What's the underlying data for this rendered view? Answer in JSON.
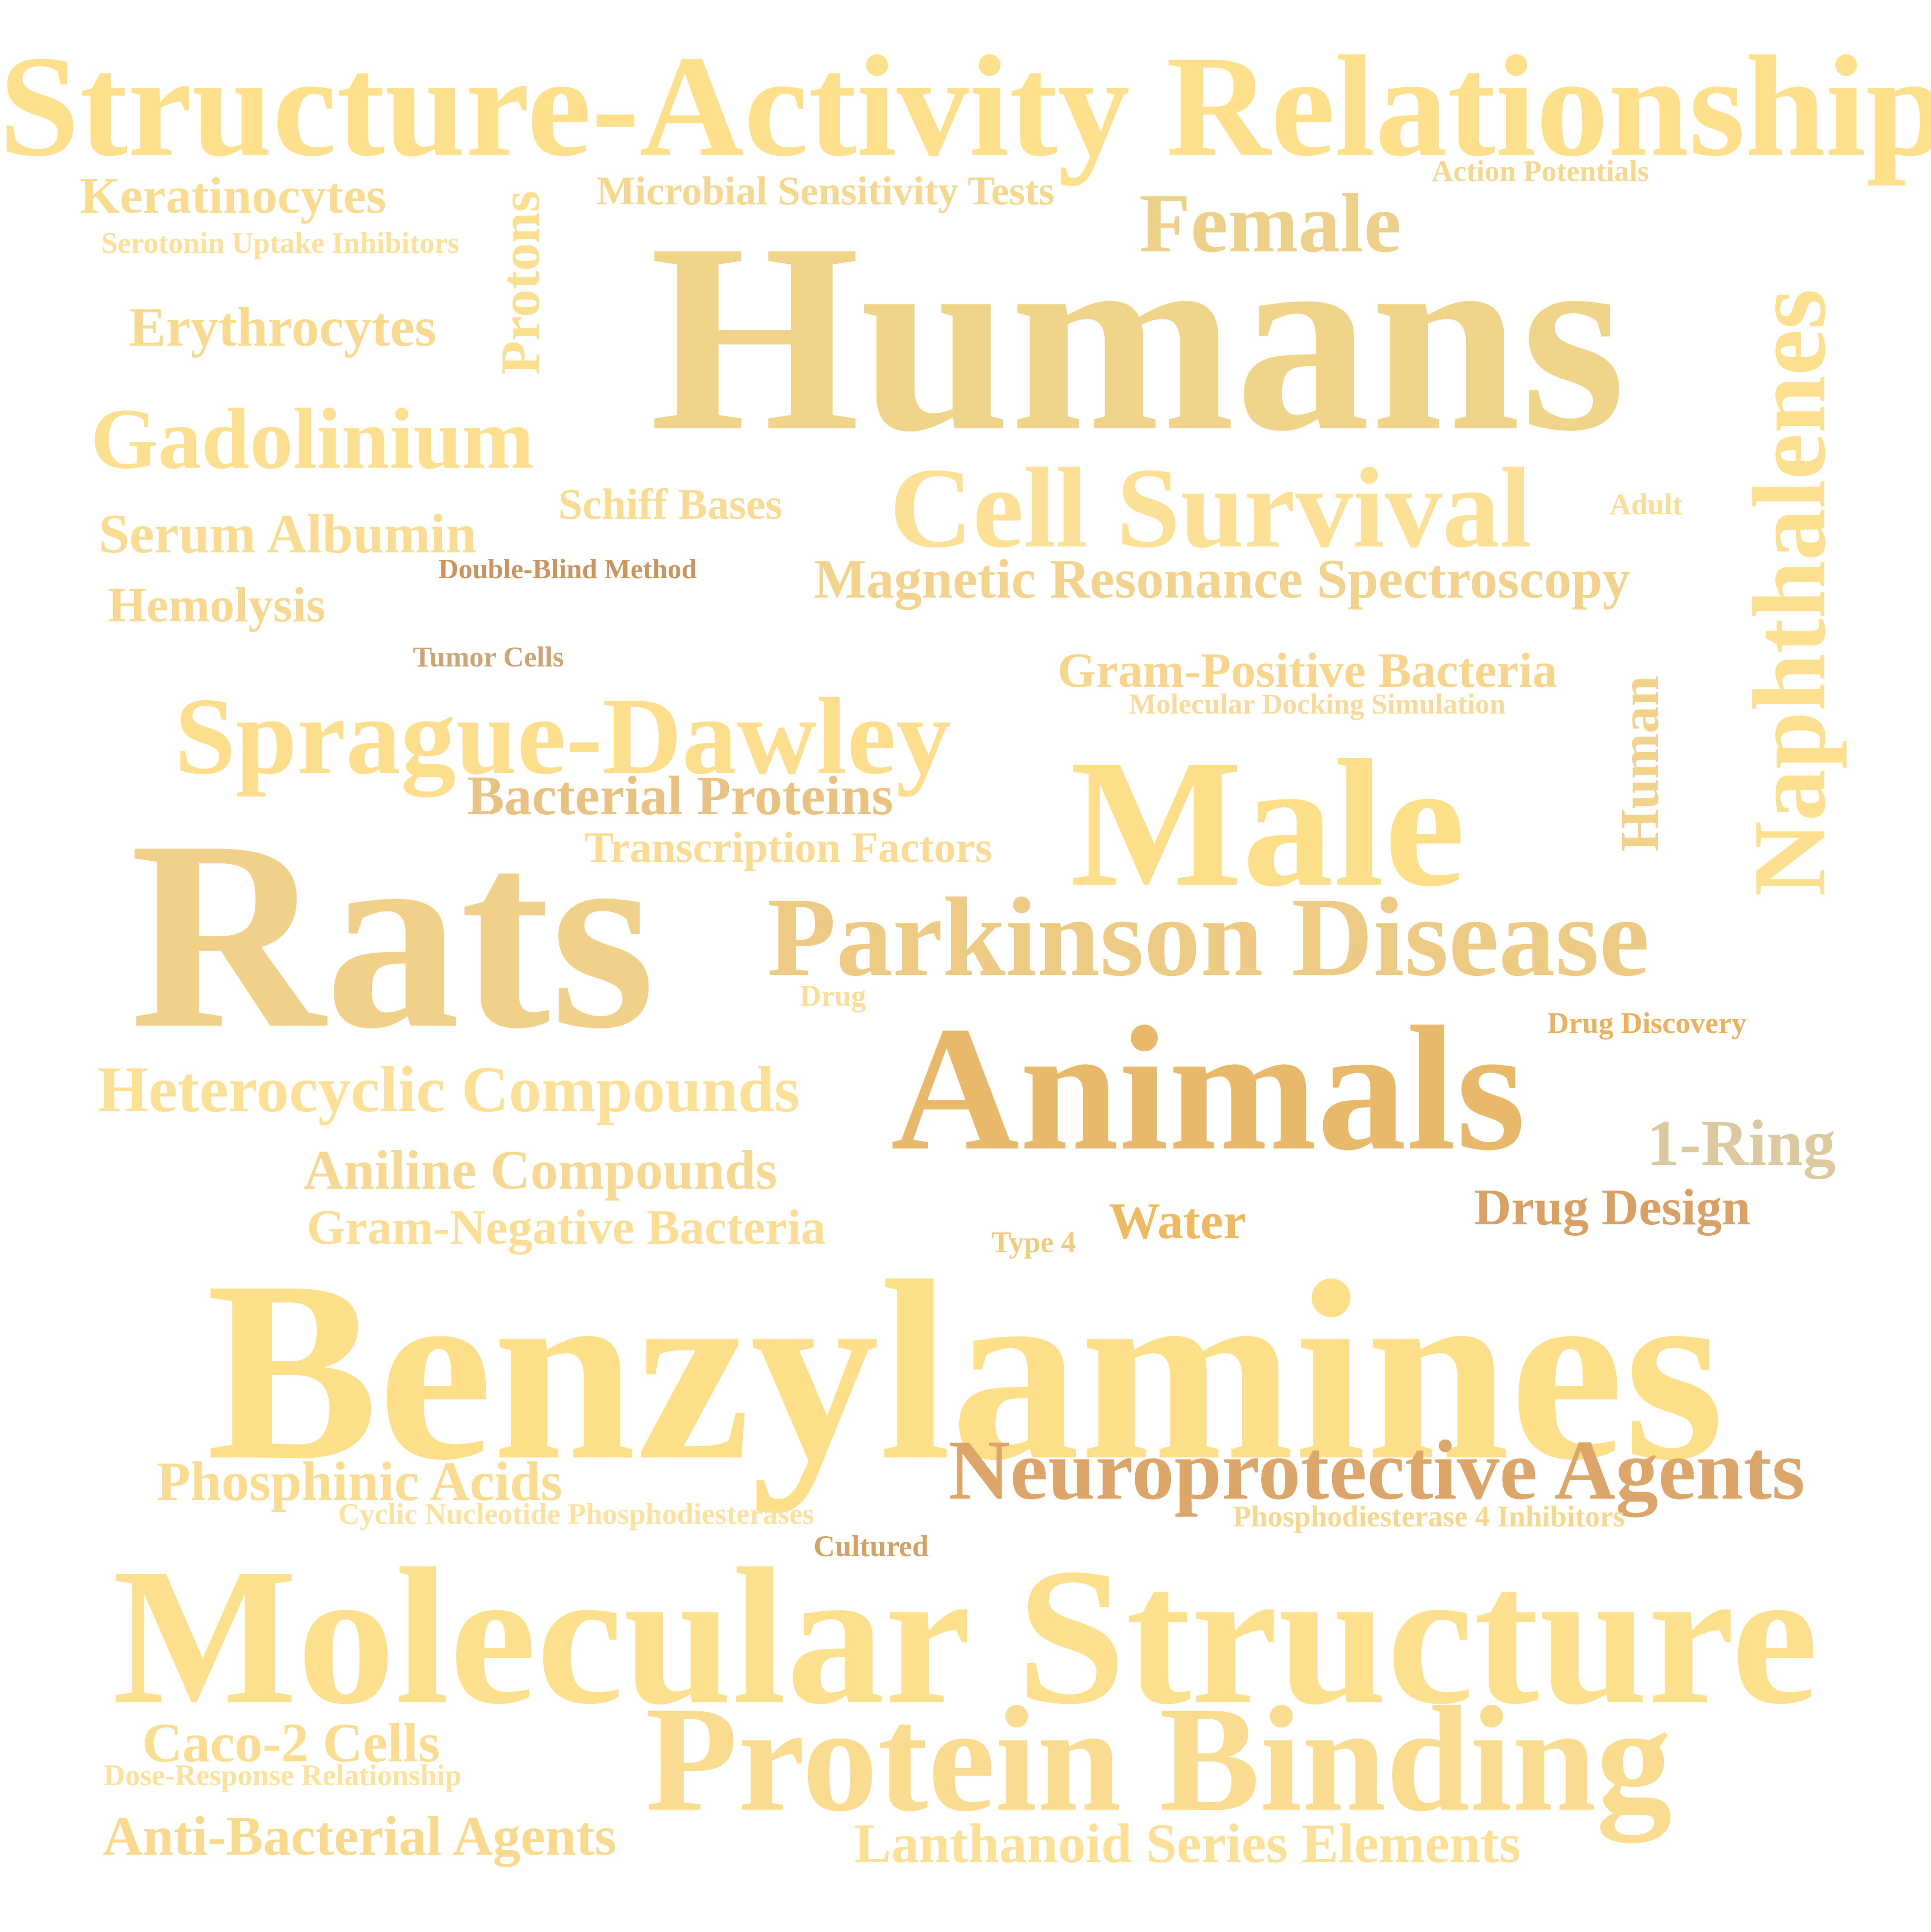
{
  "words": [
    {
      "id": "structure-activity-relationship",
      "text": "Structure-Activity Relationship",
      "color": "#FDDF8C"
    },
    {
      "id": "keratinocytes",
      "text": "Keratinocytes",
      "color": "#FADC90"
    },
    {
      "id": "protons",
      "text": "Protons",
      "color": "#FBDF91"
    },
    {
      "id": "microbial-sensitivity-tests",
      "text": "Microbial Sensitivity Tests",
      "color": "#F6D78E"
    },
    {
      "id": "action-potentials",
      "text": "Action Potentials",
      "color": "#F6D78E"
    },
    {
      "id": "female",
      "text": "Female",
      "color": "#EDD08A"
    },
    {
      "id": "serotonin-uptake-inhibitors",
      "text": "Serotonin Uptake Inhibitors",
      "color": "#FDE09A"
    },
    {
      "id": "humans",
      "text": "Humans",
      "color": "#F0D48A"
    },
    {
      "id": "naphthalenes",
      "text": "Naphthalenes",
      "color": "#FCE08F"
    },
    {
      "id": "erythrocytes",
      "text": "Erythrocytes",
      "color": "#F7DA8F"
    },
    {
      "id": "gadolinium",
      "text": "Gadolinium",
      "color": "#FCE08F"
    },
    {
      "id": "schiff-bases",
      "text": "Schiff Bases",
      "color": "#F9DB92"
    },
    {
      "id": "cell-survival",
      "text": "Cell Survival",
      "color": "#FCE096"
    },
    {
      "id": "adult",
      "text": "Adult",
      "color": "#FADD96"
    },
    {
      "id": "serum-albumin",
      "text": "Serum Albumin",
      "color": "#FADB92"
    },
    {
      "id": "double-blind-method",
      "text": "Double-Blind Method",
      "color": "#C8965E"
    },
    {
      "id": "magnetic-resonance-spectroscopy",
      "text": "Magnetic Resonance Spectroscopy",
      "color": "#F3D28E"
    },
    {
      "id": "hemolysis",
      "text": "Hemolysis",
      "color": "#F8D890"
    },
    {
      "id": "tumor-cells",
      "text": "Tumor Cells",
      "color": "#CDA474"
    },
    {
      "id": "gram-positive-bacteria",
      "text": "Gram-Positive Bacteria",
      "color": "#F7D58C"
    },
    {
      "id": "molecular-docking-simulation",
      "text": "Molecular Docking Simulation",
      "color": "#F8DB9C"
    },
    {
      "id": "sprague-dawley",
      "text": "Sprague-Dawley",
      "color": "#FCDE8C"
    },
    {
      "id": "human",
      "text": "Human",
      "color": "#F3D28C"
    },
    {
      "id": "male",
      "text": "Male",
      "color": "#FDDF8A"
    },
    {
      "id": "bacterial-proteins",
      "text": "Bacterial Proteins",
      "color": "#E9C181"
    },
    {
      "id": "transcription-factors",
      "text": "Transcription Factors",
      "color": "#FBDA92"
    },
    {
      "id": "rats",
      "text": "Rats",
      "color": "#F1D18A"
    },
    {
      "id": "parkinson-disease",
      "text": "Parkinson Disease",
      "color": "#EDCB85"
    },
    {
      "id": "drug",
      "text": "Drug",
      "color": "#FBDE98"
    },
    {
      "id": "drug-discovery",
      "text": "Drug Discovery",
      "color": "#EBB15C"
    },
    {
      "id": "animals",
      "text": "Animals",
      "color": "#E8B96A"
    },
    {
      "id": "heterocyclic-compounds",
      "text": "Heterocyclic Compounds",
      "color": "#FCE096"
    },
    {
      "id": "1-ring",
      "text": "1-Ring",
      "color": "#DCC9A0"
    },
    {
      "id": "aniline-compounds",
      "text": "Aniline Compounds",
      "color": "#F6D892"
    },
    {
      "id": "drug-design",
      "text": "Drug Design",
      "color": "#D9A264"
    },
    {
      "id": "water",
      "text": "Water",
      "color": "#EEB960"
    },
    {
      "id": "type-4",
      "text": "Type 4",
      "color": "#F2CC7E"
    },
    {
      "id": "gram-negative-bacteria",
      "text": "Gram-Negative Bacteria",
      "color": "#FBDD94"
    },
    {
      "id": "benzylamines",
      "text": "Benzylamines",
      "color": "#FDDF8A"
    },
    {
      "id": "neuroprotective-agents",
      "text": "Neuroprotective Agents",
      "color": "#DCA66B"
    },
    {
      "id": "phosphinic-acids",
      "text": "Phosphinic Acids",
      "color": "#FADC90"
    },
    {
      "id": "cyclic-nucleotide-phosphodiesterases",
      "text": "Cyclic Nucleotide Phosphodiesterases",
      "color": "#FCE29E"
    },
    {
      "id": "phosphodiesterase-4-inhibitors",
      "text": "Phosphodiesterase 4 Inhibitors",
      "color": "#F7D790"
    },
    {
      "id": "cultured",
      "text": "Cultured",
      "color": "#D4A263"
    },
    {
      "id": "molecular-structure",
      "text": "Molecular Structure",
      "color": "#FDE08E"
    },
    {
      "id": "protein-binding",
      "text": "Protein Binding",
      "color": "#FADC90"
    },
    {
      "id": "caco-2-cells",
      "text": "Caco-2 Cells",
      "color": "#FBDD92"
    },
    {
      "id": "dose-response-relationship",
      "text": "Dose-Response Relationship",
      "color": "#FCE29C"
    },
    {
      "id": "anti-bacterial-agents",
      "text": "Anti-Bacterial Agents",
      "color": "#F8D98E"
    },
    {
      "id": "lanthanoid-series-elements",
      "text": "Lanthanoid Series Elements",
      "color": "#FCE096"
    }
  ]
}
